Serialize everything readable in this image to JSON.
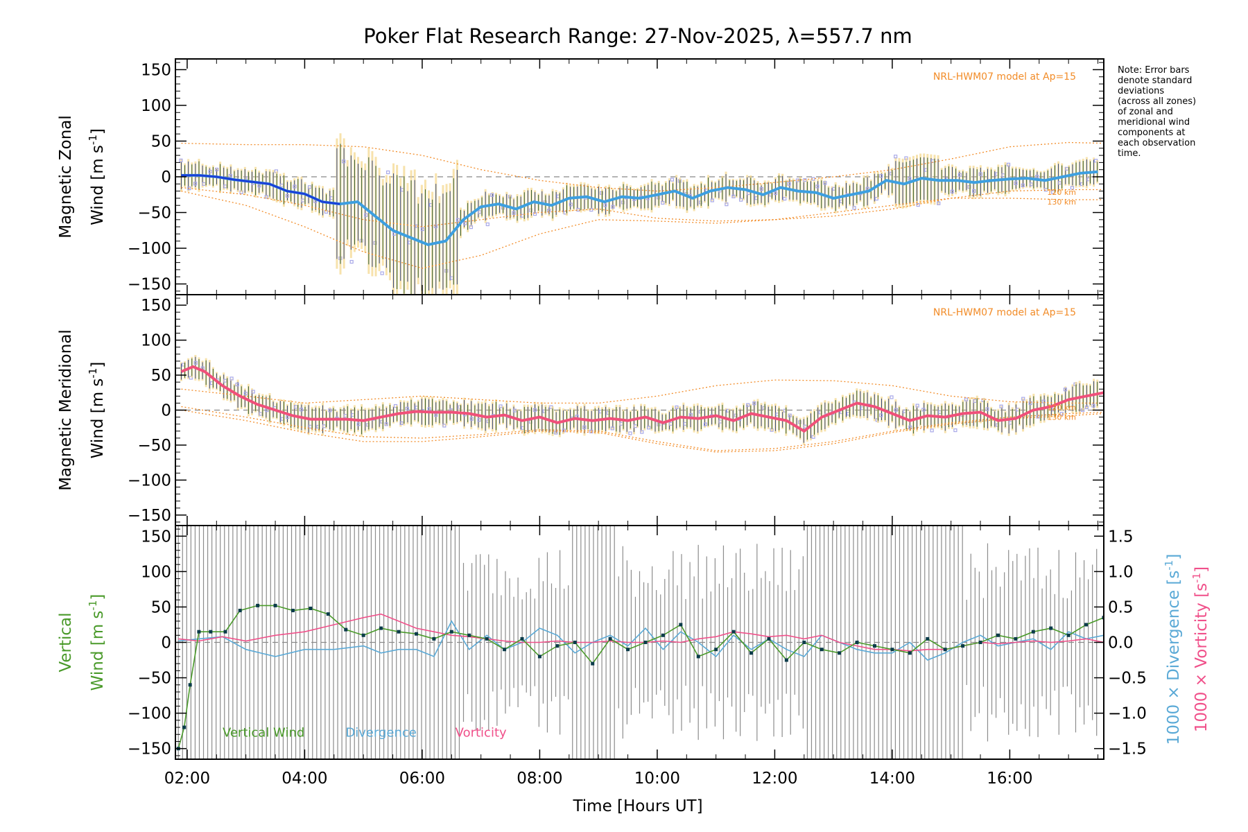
{
  "colors": {
    "model": "#f28c28",
    "zonal": "#3d9fe0",
    "zonal_dark": "#1a3fd8",
    "meridional": "#f0507a",
    "vertical": "#4a9a2a",
    "divergence": "#5aa9d6",
    "vorticity": "#f0508a",
    "errbar_gray": "#8c8c8c",
    "zone_points": "#a8a8e8",
    "err_yellow": "#f5d78a",
    "dark_points": "#0b3b4a"
  },
  "chart_data": {
    "type": "line",
    "title": "Poker Flat Research Range: 27-Nov-2025, λ=557.7 nm",
    "xlabel": "Time [Hours UT]",
    "xlim": [
      1.8,
      17.6
    ],
    "x_ticks": [
      "02:00",
      "04:00",
      "06:00",
      "08:00",
      "10:00",
      "12:00",
      "14:00",
      "16:00"
    ],
    "x_tick_values": [
      2,
      4,
      6,
      8,
      10,
      12,
      14,
      16
    ],
    "note": [
      "Note: Error bars",
      "denote standard",
      "deviations",
      "(across all zones)",
      "of zonal and",
      "meridional wind",
      "components at",
      "each observation",
      "time."
    ],
    "y_ticks": [
      "150",
      "100",
      "50",
      "0",
      "−50",
      "−100",
      "−150"
    ],
    "y_tick_values": [
      150,
      100,
      50,
      0,
      -50,
      -100,
      -150
    ],
    "right_ticks": [
      "1.5",
      "1.0",
      "0.5",
      "0.0",
      "−0.5",
      "−1.0",
      "−1.5"
    ],
    "right_tick_values": [
      1.5,
      1.0,
      0.5,
      0.0,
      -0.5,
      -1.0,
      -1.5
    ],
    "panels": [
      {
        "name": "zonal",
        "ylabel_line1": "Magnetic Zonal",
        "ylabel_line2": "Wind [m s",
        "ylabel_sup": "-1",
        "ylabel_end": "]",
        "ylim": [
          -165,
          165
        ],
        "model_label": "NRL-HWM07 model at Ap=15",
        "km_labels": [
          "120 km",
          "130 km"
        ],
        "series": [
          {
            "name": "Magnetic Zonal Wind",
            "x": [
              1.9,
              2.2,
              2.5,
              2.8,
              3.1,
              3.4,
              3.7,
              4.0,
              4.3,
              4.6,
              4.9,
              5.2,
              5.5,
              5.8,
              6.1,
              6.4,
              6.7,
              7.0,
              7.3,
              7.6,
              7.9,
              8.2,
              8.5,
              8.8,
              9.1,
              9.4,
              9.7,
              10.0,
              10.3,
              10.6,
              10.9,
              11.2,
              11.5,
              11.8,
              12.1,
              12.4,
              12.7,
              13.0,
              13.3,
              13.6,
              13.9,
              14.2,
              14.5,
              14.8,
              15.1,
              15.4,
              15.7,
              16.0,
              16.3,
              16.6,
              16.9,
              17.2,
              17.5
            ],
            "y": [
              2,
              2,
              0,
              -4,
              -7,
              -10,
              -20,
              -24,
              -35,
              -38,
              -35,
              -55,
              -75,
              -85,
              -95,
              -90,
              -60,
              -42,
              -38,
              -45,
              -35,
              -40,
              -30,
              -28,
              -35,
              -28,
              -30,
              -25,
              -20,
              -30,
              -20,
              -15,
              -18,
              -25,
              -15,
              -20,
              -22,
              -30,
              -25,
              -20,
              -5,
              -10,
              -2,
              -5,
              -5,
              -8,
              -5,
              -3,
              -2,
              -5,
              0,
              5,
              7
            ]
          }
        ],
        "model_curves": [
          {
            "name": "120 km upper",
            "x": [
              1.9,
              3.0,
              4.0,
              5.0,
              6.0,
              7.0,
              8.0,
              9.0,
              10.0,
              11.0,
              12.0,
              13.0,
              14.0,
              15.0,
              16.0,
              17.0,
              17.6
            ],
            "y": [
              47,
              45,
              45,
              42,
              30,
              10,
              -5,
              -15,
              -20,
              -15,
              -8,
              0,
              10,
              25,
              42,
              48,
              47
            ]
          },
          {
            "name": "120 km lower",
            "x": [
              1.9,
              3.0,
              4.0,
              5.0,
              6.0,
              7.0,
              8.0,
              9.0,
              10.0,
              11.0,
              12.0,
              13.0,
              14.0,
              15.0,
              16.0,
              17.0,
              17.6
            ],
            "y": [
              -15,
              -25,
              -40,
              -60,
              -70,
              -60,
              -50,
              -45,
              -58,
              -62,
              -60,
              -55,
              -45,
              -30,
              -20,
              -18,
              -18
            ]
          },
          {
            "name": "130 km lower",
            "x": [
              1.9,
              3.0,
              4.0,
              5.0,
              6.0,
              7.0,
              8.0,
              9.0,
              10.0,
              11.0,
              12.0,
              13.0,
              14.0,
              15.0,
              16.0,
              17.0,
              17.6
            ],
            "y": [
              -20,
              -40,
              -70,
              -105,
              -128,
              -110,
              -80,
              -60,
              -62,
              -65,
              -60,
              -50,
              -40,
              -30,
              -30,
              -32,
              -32
            ]
          }
        ]
      },
      {
        "name": "meridional",
        "ylabel_line1": "Magnetic Meridional",
        "ylabel_line2": "Wind [m s",
        "ylabel_sup": "-1",
        "ylabel_end": "]",
        "ylim": [
          -165,
          165
        ],
        "model_label": "NRL-HWM07 model at Ap=15",
        "km_labels": [
          "120 km",
          "130 km"
        ],
        "series": [
          {
            "name": "Magnetic Meridional Wind",
            "x": [
              1.9,
              2.1,
              2.3,
              2.6,
              2.9,
              3.2,
              3.5,
              3.8,
              4.1,
              4.4,
              4.7,
              5.0,
              5.3,
              5.6,
              5.9,
              6.2,
              6.5,
              6.8,
              7.1,
              7.4,
              7.7,
              8.0,
              8.3,
              8.6,
              8.9,
              9.2,
              9.5,
              9.8,
              10.1,
              10.4,
              10.7,
              11.0,
              11.3,
              11.6,
              11.9,
              12.2,
              12.5,
              12.8,
              13.1,
              13.4,
              13.7,
              14.0,
              14.3,
              14.6,
              14.9,
              15.2,
              15.5,
              15.8,
              16.1,
              16.4,
              16.7,
              17.0,
              17.3,
              17.6
            ],
            "y": [
              55,
              62,
              55,
              35,
              20,
              8,
              0,
              -8,
              -13,
              -13,
              -13,
              -15,
              -10,
              -5,
              -2,
              -3,
              -3,
              -5,
              -10,
              -7,
              -15,
              -10,
              -18,
              -12,
              -15,
              -12,
              -15,
              -10,
              -18,
              -10,
              -12,
              -8,
              -15,
              -5,
              -10,
              -15,
              -30,
              -10,
              0,
              10,
              5,
              -5,
              -15,
              -8,
              -10,
              -5,
              -3,
              -15,
              -12,
              0,
              5,
              15,
              20,
              25
            ]
          }
        ],
        "model_curves": [
          {
            "name": "120 km upper",
            "x": [
              1.9,
              3.0,
              4.0,
              5.0,
              6.0,
              7.0,
              8.0,
              9.0,
              10.0,
              11.0,
              12.0,
              13.0,
              14.0,
              15.0,
              16.0,
              17.0,
              17.6
            ],
            "y": [
              30,
              20,
              10,
              15,
              20,
              15,
              10,
              10,
              20,
              35,
              43,
              42,
              35,
              20,
              12,
              10,
              10
            ]
          },
          {
            "name": "120 km lower",
            "x": [
              1.9,
              3.0,
              4.0,
              5.0,
              6.0,
              7.0,
              8.0,
              9.0,
              10.0,
              11.0,
              12.0,
              13.0,
              14.0,
              15.0,
              16.0,
              17.0,
              17.6
            ],
            "y": [
              5,
              -10,
              -25,
              -38,
              -40,
              -35,
              -28,
              -30,
              -45,
              -58,
              -55,
              -45,
              -30,
              -18,
              -10,
              -5,
              -3
            ]
          },
          {
            "name": "130 km lower",
            "x": [
              1.9,
              3.0,
              4.0,
              5.0,
              6.0,
              7.0,
              8.0,
              9.0,
              10.0,
              11.0,
              12.0,
              13.0,
              14.0,
              15.0,
              16.0,
              17.0,
              17.6
            ],
            "y": [
              0,
              -15,
              -32,
              -45,
              -45,
              -38,
              -30,
              -32,
              -48,
              -60,
              -58,
              -48,
              -32,
              -20,
              -12,
              -8,
              -5
            ]
          }
        ]
      },
      {
        "name": "vertical",
        "ylabel_line1": "Vertical",
        "ylabel_line2": "Wind [m s",
        "ylabel_sup": "-1",
        "ylabel_end": "]",
        "ylim": [
          -165,
          165
        ],
        "right_ylim": [
          -1.65,
          1.65
        ],
        "right_label_div": "1000 × Divergence [s",
        "right_label_vort": "1000 × Vorticity [s",
        "right_label_sup": "-1",
        "right_label_end": "]",
        "legend": [
          "Vertical Wind",
          "Divergence",
          "Vorticity"
        ],
        "series": [
          {
            "name": "Vertical Wind",
            "x": [
              1.85,
              1.95,
              2.05,
              2.2,
              2.4,
              2.65,
              2.9,
              3.2,
              3.5,
              3.8,
              4.1,
              4.4,
              4.7,
              5.0,
              5.3,
              5.6,
              5.9,
              6.2,
              6.5,
              6.8,
              7.1,
              7.4,
              7.7,
              8.0,
              8.3,
              8.6,
              8.9,
              9.2,
              9.5,
              9.8,
              10.1,
              10.4,
              10.7,
              11.0,
              11.3,
              11.6,
              11.9,
              12.2,
              12.5,
              12.8,
              13.1,
              13.4,
              13.7,
              14.0,
              14.3,
              14.6,
              14.9,
              15.2,
              15.5,
              15.8,
              16.1,
              16.4,
              16.7,
              17.0,
              17.3,
              17.6
            ],
            "y": [
              -150,
              -120,
              -60,
              15,
              15,
              15,
              45,
              52,
              52,
              45,
              48,
              40,
              18,
              10,
              20,
              15,
              12,
              5,
              15,
              10,
              5,
              -10,
              5,
              -20,
              -5,
              0,
              -30,
              5,
              -10,
              0,
              10,
              25,
              -20,
              -10,
              15,
              -15,
              5,
              -25,
              0,
              -10,
              -15,
              0,
              -5,
              -10,
              -15,
              5,
              -10,
              -5,
              0,
              10,
              5,
              15,
              20,
              10,
              25,
              35
            ]
          },
          {
            "name": "Divergence",
            "x": [
              1.85,
              2.2,
              2.6,
              3.0,
              3.5,
              4.0,
              4.5,
              5.0,
              5.3,
              5.6,
              5.9,
              6.2,
              6.5,
              6.8,
              7.1,
              7.4,
              7.7,
              8.0,
              8.3,
              8.6,
              8.9,
              9.2,
              9.5,
              9.8,
              10.1,
              10.4,
              10.7,
              11.0,
              11.3,
              11.6,
              11.9,
              12.2,
              12.5,
              12.8,
              13.1,
              13.4,
              13.7,
              14.0,
              14.3,
              14.6,
              14.9,
              15.2,
              15.5,
              15.8,
              16.1,
              16.4,
              16.7,
              17.0,
              17.3,
              17.6
            ],
            "y": [
              0.02,
              0.05,
              0.08,
              -0.1,
              -0.2,
              -0.1,
              -0.1,
              -0.05,
              -0.15,
              -0.1,
              -0.1,
              -0.2,
              0.3,
              -0.1,
              0.1,
              -0.1,
              0.0,
              0.2,
              0.1,
              -0.15,
              0.0,
              0.1,
              -0.05,
              0.2,
              -0.1,
              0.15,
              0.0,
              -0.2,
              0.1,
              -0.1,
              0.05,
              -0.1,
              -0.2,
              0.1,
              0.0,
              -0.1,
              -0.15,
              -0.15,
              0.0,
              -0.25,
              -0.15,
              0.0,
              0.1,
              -0.05,
              0.0,
              0.05,
              -0.1,
              0.15,
              0.05,
              0.1
            ]
          },
          {
            "name": "Vorticity",
            "x": [
              1.85,
              2.2,
              2.6,
              3.0,
              3.5,
              4.0,
              4.5,
              5.0,
              5.3,
              5.6,
              5.9,
              6.2,
              6.5,
              6.8,
              7.1,
              7.4,
              7.7,
              8.0,
              8.3,
              8.6,
              8.9,
              9.2,
              9.5,
              9.8,
              10.1,
              10.4,
              10.7,
              11.0,
              11.3,
              11.6,
              11.9,
              12.2,
              12.5,
              12.8,
              13.1,
              13.4,
              13.7,
              14.0,
              14.3,
              14.6,
              14.9,
              15.2,
              15.5,
              15.8,
              16.1,
              16.4,
              16.7,
              17.0,
              17.3,
              17.6
            ],
            "y": [
              0.05,
              0.02,
              0.08,
              0.02,
              0.1,
              0.15,
              0.25,
              0.35,
              0.4,
              0.3,
              0.2,
              0.15,
              0.1,
              0.08,
              0.05,
              0.02,
              0.0,
              0.0,
              0.02,
              0.0,
              0.0,
              0.02,
              0.0,
              0.0,
              0.02,
              0.0,
              0.05,
              0.08,
              0.15,
              0.12,
              0.08,
              0.1,
              0.05,
              0.1,
              0.0,
              -0.05,
              -0.1,
              -0.1,
              -0.12,
              -0.1,
              -0.1,
              -0.05,
              0.0,
              -0.02,
              0.0,
              0.02,
              0.0,
              0.02,
              0.05,
              0.0
            ]
          }
        ]
      }
    ]
  }
}
